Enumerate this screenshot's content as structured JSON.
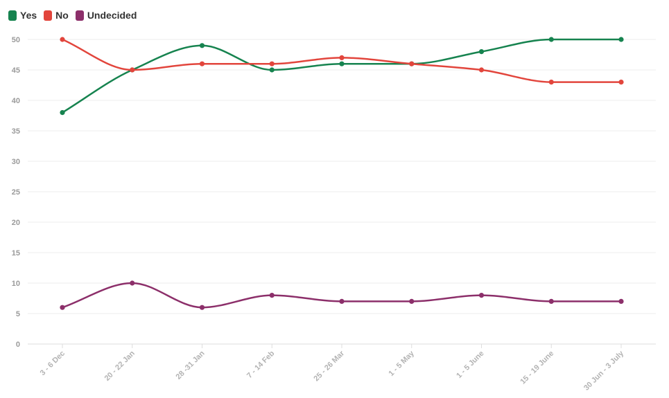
{
  "chart_data": {
    "type": "line",
    "title": "",
    "xlabel": "",
    "ylabel": "",
    "categories": [
      "3 - 6 Dec",
      "20 - 22 Jan",
      "28 -31 Jan",
      "7 - 14 Feb",
      "25 - 26 Mar",
      "1 - 5 May",
      "1 - 5 June",
      "15 - 19 June",
      "30 Jun - 3 July"
    ],
    "ylim": [
      0,
      50
    ],
    "yticks": [
      0,
      5,
      10,
      15,
      20,
      25,
      30,
      35,
      40,
      45,
      50
    ],
    "grid": true,
    "legend_position": "top-left",
    "series": [
      {
        "name": "Yes",
        "color": "#16834f",
        "values": [
          38,
          45,
          49,
          45,
          46,
          46,
          48,
          50,
          50
        ]
      },
      {
        "name": "No",
        "color": "#e2453c",
        "values": [
          50,
          45,
          46,
          46,
          47,
          46,
          45,
          43,
          43
        ]
      },
      {
        "name": "Undecided",
        "color": "#8c2f6a",
        "values": [
          6,
          10,
          6,
          8,
          7,
          7,
          8,
          7,
          7
        ]
      }
    ]
  }
}
